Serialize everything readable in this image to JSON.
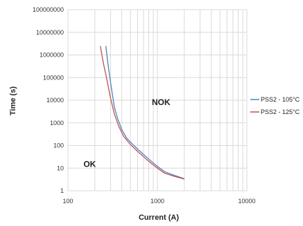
{
  "chart_data": {
    "type": "line",
    "title": "",
    "xlabel": "Current (A)",
    "ylabel": "Time (s)",
    "x_scale": "log",
    "y_scale": "log",
    "xlim": [
      100,
      10000
    ],
    "ylim": [
      1,
      100000000
    ],
    "x_ticks": [
      "100",
      "1000",
      "10000"
    ],
    "y_ticks": [
      "1",
      "10",
      "100",
      "1000",
      "10000",
      "100000",
      "1000000",
      "10000000",
      "100000000"
    ],
    "grid": true,
    "legend_position": "right",
    "annotations": [
      {
        "text": "NOK",
        "x": 1100,
        "y": 8000
      },
      {
        "text": "OK",
        "x": 175,
        "y": 15
      }
    ],
    "series": [
      {
        "name": "PSS2 - 105°C",
        "color": "#4f81bd",
        "points": [
          [
            265,
            2500000
          ],
          [
            280,
            400000
          ],
          [
            300,
            60000
          ],
          [
            330,
            5000
          ],
          [
            360,
            1500
          ],
          [
            400,
            500
          ],
          [
            450,
            220
          ],
          [
            500,
            140
          ],
          [
            600,
            70
          ],
          [
            700,
            40
          ],
          [
            800,
            25
          ],
          [
            1000,
            12
          ],
          [
            1200,
            7
          ],
          [
            1500,
            5
          ],
          [
            2000,
            3.4
          ]
        ]
      },
      {
        "name": "PSS2 - 125°C",
        "color": "#c0504d",
        "points": [
          [
            230,
            2500000
          ],
          [
            250,
            400000
          ],
          [
            270,
            100000
          ],
          [
            300,
            12000
          ],
          [
            330,
            2500
          ],
          [
            370,
            700
          ],
          [
            420,
            250
          ],
          [
            500,
            110
          ],
          [
            600,
            55
          ],
          [
            700,
            32
          ],
          [
            800,
            20
          ],
          [
            1000,
            10
          ],
          [
            1200,
            6
          ],
          [
            1500,
            4.5
          ],
          [
            2000,
            3.3
          ]
        ]
      }
    ]
  }
}
